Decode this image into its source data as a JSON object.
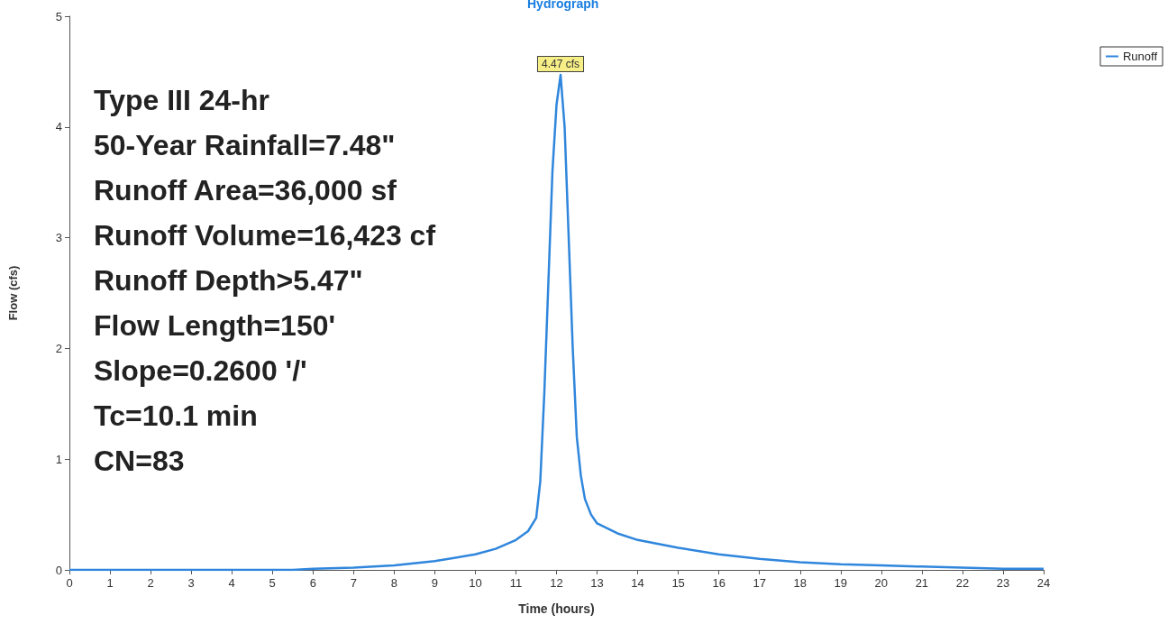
{
  "chart_data": {
    "type": "line",
    "title": "Hydrograph",
    "xlabel": "Time (hours)",
    "ylabel": "Flow (cfs)",
    "x": [
      0,
      5.5,
      6,
      7,
      8,
      9,
      10,
      10.5,
      11,
      11.3,
      11.5,
      11.6,
      11.7,
      11.8,
      11.9,
      12,
      12.1,
      12.2,
      12.3,
      12.4,
      12.5,
      12.6,
      12.7,
      12.85,
      13,
      13.5,
      14,
      15,
      16,
      17,
      18,
      19,
      20,
      21,
      22,
      23,
      24
    ],
    "series": [
      {
        "name": "Runoff",
        "color": "#2f86dc",
        "values": [
          0,
          0,
          0.01,
          0.02,
          0.04,
          0.08,
          0.14,
          0.19,
          0.27,
          0.35,
          0.47,
          0.8,
          1.6,
          2.6,
          3.6,
          4.2,
          4.47,
          4.0,
          3.0,
          2.0,
          1.2,
          0.85,
          0.64,
          0.5,
          0.42,
          0.33,
          0.27,
          0.2,
          0.14,
          0.1,
          0.07,
          0.05,
          0.04,
          0.03,
          0.02,
          0.01,
          0.01
        ]
      }
    ],
    "xlim": [
      0,
      24
    ],
    "xticks": [
      0,
      1,
      2,
      3,
      4,
      5,
      6,
      7,
      8,
      9,
      10,
      11,
      12,
      13,
      14,
      15,
      16,
      17,
      18,
      19,
      20,
      21,
      22,
      23,
      24
    ],
    "ylim": [
      0,
      5
    ],
    "yticks": [
      0,
      1,
      2,
      3,
      4,
      5
    ],
    "grid": false,
    "legend": "top right",
    "marker": "none",
    "line_style": "solid",
    "annotations": [
      {
        "text": "4.47 cfs",
        "x": 12.1,
        "y": 4.47
      },
      "Type III 24-hr",
      "50-Year Rainfall=7.48\"",
      "Runoff Area=36,000 sf",
      "Runoff Volume=16,423 cf",
      "Runoff Depth>5.47\"",
      "Flow Length=150'",
      "Slope=0.2600 '/'",
      "Tc=10.1 min",
      "CN=83"
    ]
  }
}
